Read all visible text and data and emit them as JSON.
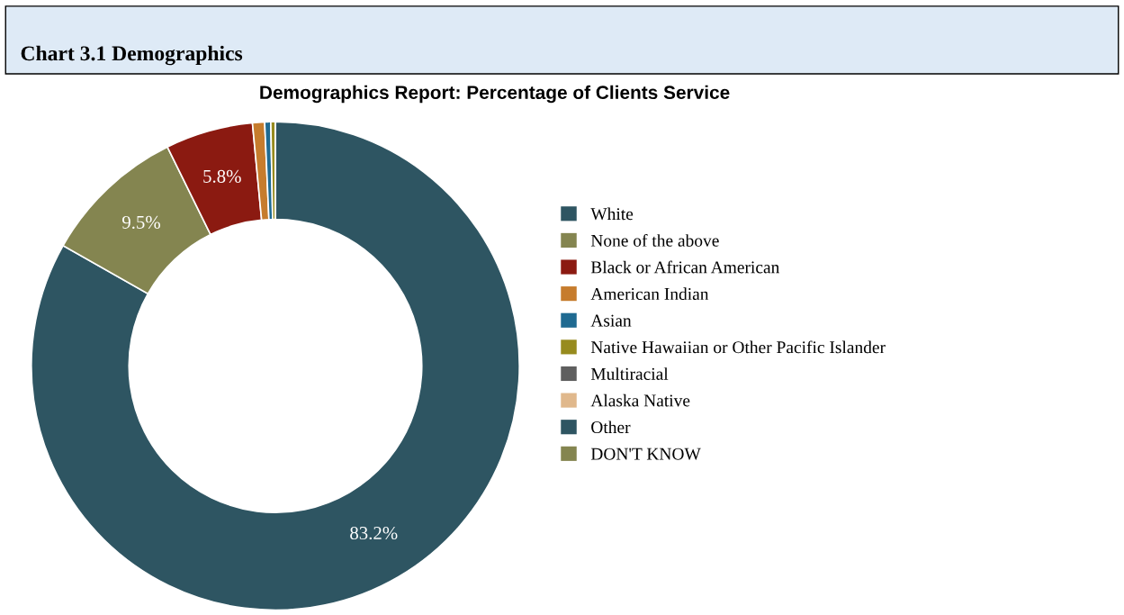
{
  "chart_data": {
    "type": "donut",
    "title": "Chart 3.1 Demographics",
    "subtitle": "Demographics Report: Percentage of Clients Service",
    "categories": [
      "White",
      "None of the above",
      "Black or African American",
      "American Indian",
      "Asian",
      "Native Hawaiian or Other Pacific Islander",
      "Multiracial",
      "Alaska Native",
      "Other",
      "DON'T KNOW"
    ],
    "values": [
      83.2,
      9.5,
      5.8,
      0.8,
      0.4,
      0.3,
      0,
      0,
      0,
      0
    ],
    "colors": [
      "#2e5562",
      "#848550",
      "#8b1a11",
      "#c67c2d",
      "#1f6a91",
      "#978b1e",
      "#5f5f5f",
      "#e0b88c",
      "#2e5562",
      "#848550"
    ],
    "value_labels": [
      "83.2%",
      "9.5%",
      "5.8%",
      null,
      null,
      null,
      null,
      null,
      null,
      null
    ],
    "legend": "right"
  }
}
